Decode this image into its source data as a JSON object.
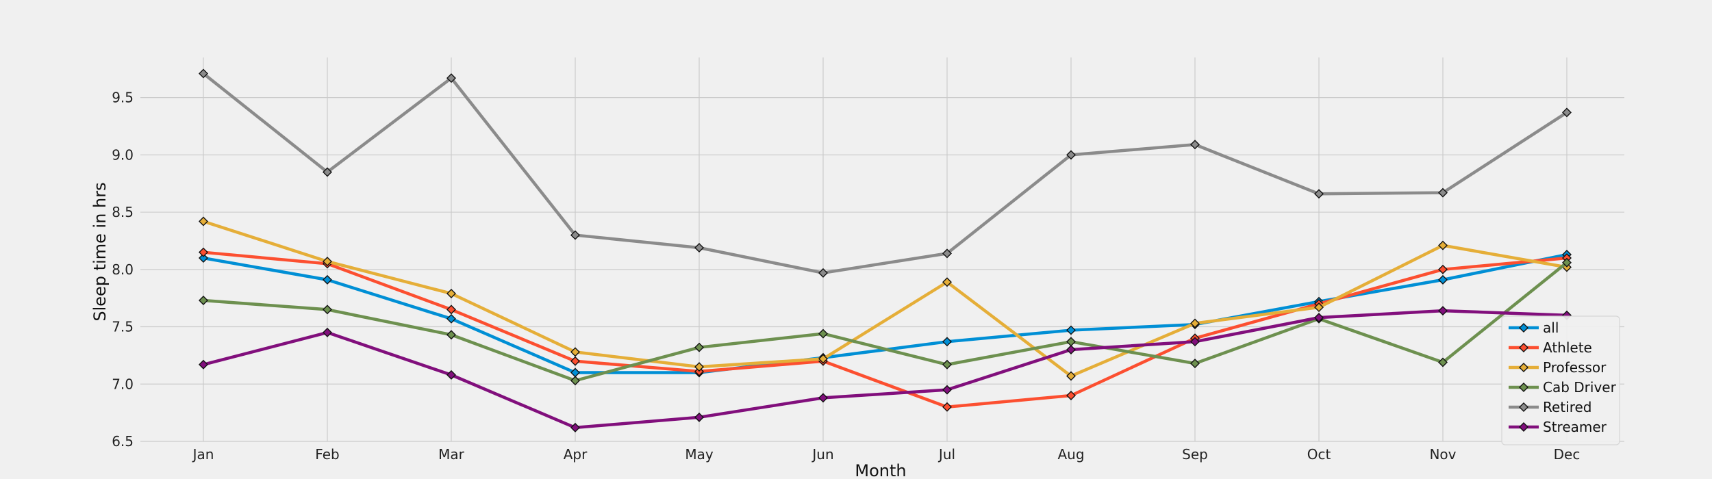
{
  "chart_data": {
    "type": "line",
    "title": "",
    "xlabel": "Month",
    "ylabel": "Sleep time in hrs",
    "categories": [
      "Jan",
      "Feb",
      "Mar",
      "Apr",
      "May",
      "Jun",
      "Jul",
      "Aug",
      "Sep",
      "Oct",
      "Nov",
      "Dec"
    ],
    "ylim": [
      6.5,
      9.85
    ],
    "yticks": [
      "6.5",
      "7.0",
      "7.5",
      "8.0",
      "8.5",
      "9.0",
      "9.5"
    ],
    "grid": true,
    "legend_position": "lower-right",
    "marker": "diamond",
    "series": [
      {
        "name": "all",
        "color": "#008fd5",
        "values": [
          8.1,
          7.91,
          7.57,
          7.1,
          7.1,
          7.23,
          7.37,
          7.47,
          7.52,
          7.72,
          7.91,
          8.13
        ]
      },
      {
        "name": "Athlete",
        "color": "#fc4f30",
        "values": [
          8.15,
          8.05,
          7.65,
          7.2,
          7.11,
          7.2,
          6.8,
          6.9,
          7.4,
          7.7,
          8.0,
          8.1
        ]
      },
      {
        "name": "Professor",
        "color": "#e5ae38",
        "values": [
          8.42,
          8.07,
          7.79,
          7.28,
          7.15,
          7.22,
          7.89,
          7.07,
          7.53,
          7.67,
          8.21,
          8.02
        ]
      },
      {
        "name": "Cab Driver",
        "color": "#6d904f",
        "values": [
          7.73,
          7.65,
          7.43,
          7.03,
          7.32,
          7.44,
          7.17,
          7.37,
          7.18,
          7.57,
          7.19,
          8.06
        ]
      },
      {
        "name": "Retired",
        "color": "#8b8b8b",
        "values": [
          9.71,
          8.85,
          9.67,
          8.3,
          8.19,
          7.97,
          8.14,
          9.0,
          9.09,
          8.66,
          8.67,
          9.37
        ]
      },
      {
        "name": "Streamer",
        "color": "#810f7c",
        "values": [
          7.17,
          7.45,
          7.08,
          6.62,
          6.71,
          6.88,
          6.95,
          7.3,
          7.37,
          7.58,
          7.64,
          7.6
        ]
      }
    ]
  }
}
